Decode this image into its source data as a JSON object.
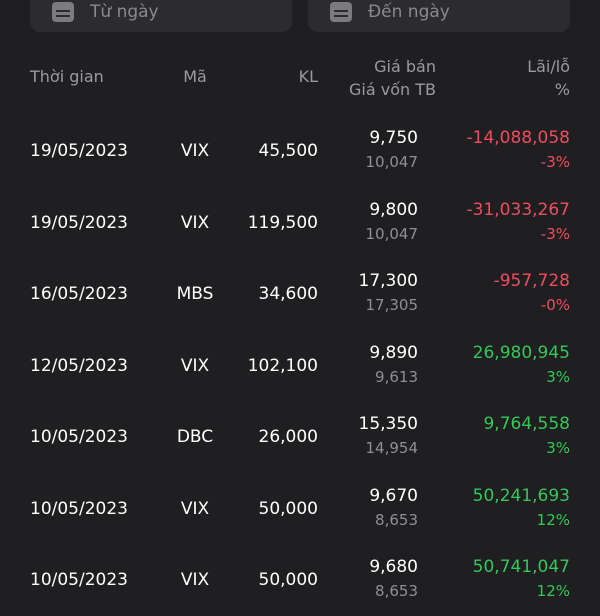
{
  "filters": {
    "from_placeholder": "Từ ngày",
    "to_placeholder": "Đến ngày"
  },
  "columns": {
    "time": "Thời gian",
    "code": "Mã",
    "qty": "KL",
    "sell_price": "Giá bán",
    "avg_cost": "Giá vốn TB",
    "pnl": "Lãi/lỗ",
    "pct": "%"
  },
  "rows": [
    {
      "date": "19/05/2023",
      "code": "VIX",
      "qty": "45,500",
      "price": "9,750",
      "avg": "10,047",
      "pnl": "-14,088,058",
      "pct": "-3%",
      "trend": "neg"
    },
    {
      "date": "19/05/2023",
      "code": "VIX",
      "qty": "119,500",
      "price": "9,800",
      "avg": "10,047",
      "pnl": "-31,033,267",
      "pct": "-3%",
      "trend": "neg"
    },
    {
      "date": "16/05/2023",
      "code": "MBS",
      "qty": "34,600",
      "price": "17,300",
      "avg": "17,305",
      "pnl": "-957,728",
      "pct": "-0%",
      "trend": "neg"
    },
    {
      "date": "12/05/2023",
      "code": "VIX",
      "qty": "102,100",
      "price": "9,890",
      "avg": "9,613",
      "pnl": "26,980,945",
      "pct": "3%",
      "trend": "pos"
    },
    {
      "date": "10/05/2023",
      "code": "DBC",
      "qty": "26,000",
      "price": "15,350",
      "avg": "14,954",
      "pnl": "9,764,558",
      "pct": "3%",
      "trend": "pos"
    },
    {
      "date": "10/05/2023",
      "code": "VIX",
      "qty": "50,000",
      "price": "9,670",
      "avg": "8,653",
      "pnl": "50,241,693",
      "pct": "12%",
      "trend": "pos"
    },
    {
      "date": "10/05/2023",
      "code": "VIX",
      "qty": "50,000",
      "price": "9,680",
      "avg": "8,653",
      "pnl": "50,741,047",
      "pct": "12%",
      "trend": "pos"
    }
  ],
  "colors": {
    "negative": "#ef4d5e",
    "positive": "#35c759",
    "background": "#1f1f21"
  }
}
